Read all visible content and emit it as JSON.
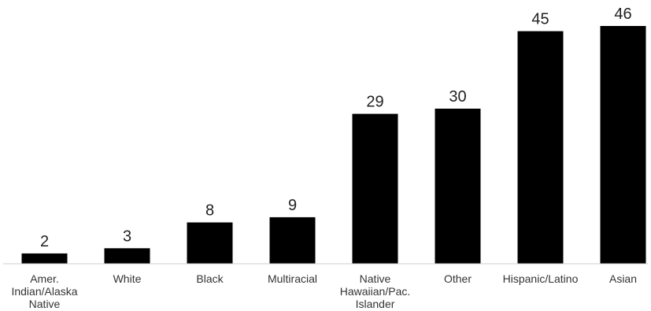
{
  "chart_data": {
    "type": "bar",
    "title": "",
    "xlabel": "",
    "ylabel": "",
    "categories": [
      "Amer. Indian/Alaska Native",
      "White",
      "Black",
      "Multiracial",
      "Native Hawaiian/Pac. Islander",
      "Other",
      "Hispanic/Latino",
      "Asian"
    ],
    "category_lines": [
      [
        "Amer.",
        "Indian/Alaska",
        "Native"
      ],
      [
        "White"
      ],
      [
        "Black"
      ],
      [
        "Multiracial"
      ],
      [
        "Native",
        "Hawaiian/Pac.",
        "Islander"
      ],
      [
        "Other"
      ],
      [
        "Hispanic/Latino"
      ],
      [
        "Asian"
      ]
    ],
    "values": [
      2,
      3,
      8,
      9,
      29,
      30,
      45,
      46
    ],
    "ylim": [
      0,
      46
    ],
    "grid": false,
    "legend": "none",
    "bar_color": "#000000"
  }
}
